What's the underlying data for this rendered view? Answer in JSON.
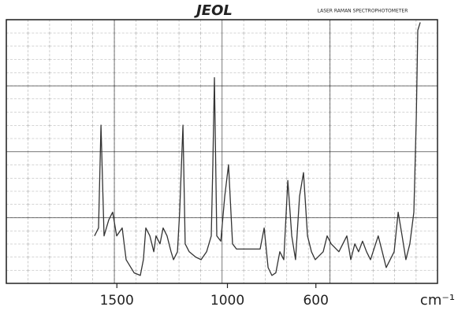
{
  "chart_data": {
    "type": "line",
    "title": "JEOL",
    "subtitle": "LASER RAMAN SPECTROPHOTOMETER",
    "x_label": "cm⁻¹",
    "xlim": [
      2000,
      50
    ],
    "ylim": [
      0,
      100
    ],
    "xticks": [
      1500,
      1000,
      600
    ],
    "color": "#333333",
    "x": [
      1601,
      1583,
      1572,
      1558,
      1537,
      1519,
      1501,
      1476,
      1458,
      1422,
      1394,
      1380,
      1369,
      1351,
      1333,
      1323,
      1305,
      1291,
      1273,
      1255,
      1244,
      1226,
      1216,
      1201,
      1191,
      1173,
      1144,
      1119,
      1094,
      1073,
      1066,
      1059,
      1048,
      1030,
      1012,
      995,
      977,
      959,
      923,
      888,
      852,
      834,
      816,
      799,
      781,
      763,
      745,
      727,
      709,
      692,
      674,
      656,
      638,
      620,
      603,
      567,
      549,
      531,
      496,
      460,
      442,
      424,
      407,
      389,
      371,
      353,
      318,
      300,
      282,
      246,
      228,
      210,
      193,
      175,
      157,
      146,
      139,
      128
    ],
    "values": [
      18,
      21,
      60,
      18,
      24,
      27,
      18,
      21,
      9,
      4,
      3,
      9,
      21,
      18,
      12,
      18,
      15,
      21,
      18,
      12,
      9,
      12,
      27,
      60,
      15,
      12,
      10,
      9,
      12,
      18,
      45,
      78,
      18,
      16,
      33,
      45,
      15,
      13,
      13,
      13,
      13,
      21,
      6,
      3,
      4,
      12,
      9,
      39,
      18,
      9,
      33,
      42,
      18,
      12,
      9,
      12,
      18,
      15,
      12,
      18,
      9,
      15,
      12,
      16,
      12,
      9,
      18,
      12,
      6,
      12,
      27,
      18,
      9,
      15,
      27,
      63,
      96,
      99
    ]
  }
}
